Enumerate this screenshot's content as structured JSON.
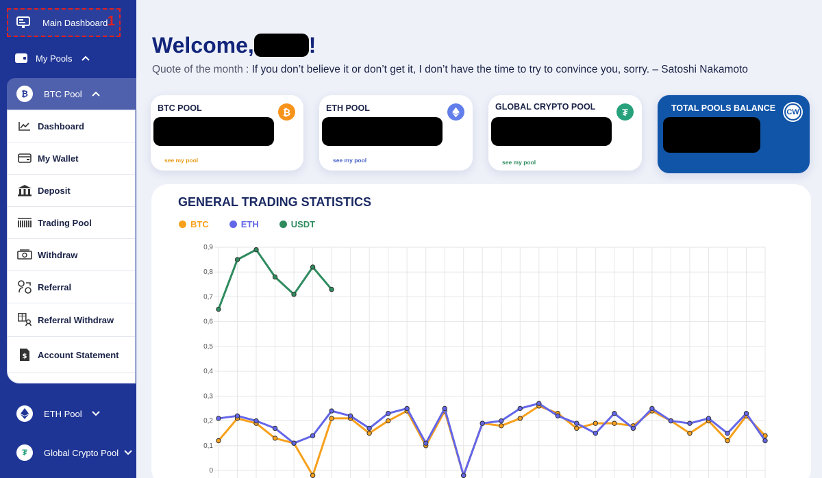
{
  "sidebar": {
    "main_dashboard": "Main Dashboard",
    "annotation_number": "1",
    "my_pools": "My Pools",
    "btc_pool": "BTC Pool",
    "btc_submenu": [
      {
        "label": "Dashboard",
        "icon": "chart-line-icon"
      },
      {
        "label": "My Wallet",
        "icon": "wallet-card-icon"
      },
      {
        "label": "Deposit",
        "icon": "bank-icon"
      },
      {
        "label": "Trading Pool",
        "icon": "barcode-icon"
      },
      {
        "label": "Withdraw",
        "icon": "money-icon"
      },
      {
        "label": "Referral",
        "icon": "referral-icon"
      },
      {
        "label": "Referral Withdraw",
        "icon": "referral-withdraw-icon"
      },
      {
        "label": "Account Statement",
        "icon": "statement-icon"
      }
    ],
    "eth_pool": "ETH Pool",
    "global_pool": "Global Crypto Pool"
  },
  "header": {
    "welcome_prefix": "Welcome,",
    "welcome_suffix": "!",
    "quote_label": "Quote of the month : ",
    "quote_text": "If you don’t believe it or don’t get it, I don’t have the time to try to convince you, sorry. – Satoshi Nakamoto"
  },
  "cards": {
    "btc": {
      "title": "BTC POOL",
      "link": "see my pool",
      "color": "#f7931a"
    },
    "eth": {
      "title": "ETH POOL",
      "link": "see my pool",
      "color": "#627eea"
    },
    "global": {
      "title": "GLOBAL CRYPTO POOL",
      "link": "see my pool",
      "color": "#26a17b"
    },
    "total": {
      "title": "TOTAL POOLS BALANCE",
      "logo_text": "CW"
    }
  },
  "colors": {
    "sidebar": "#1e3596",
    "btc": "#f7a01c",
    "eth": "#6366e8",
    "usdt": "#2e8b5e"
  },
  "chart_data": {
    "type": "line",
    "title": "GENERAL TRADING STATISTICS",
    "ylim": [
      0,
      0.9
    ],
    "y_ticks": [
      "0",
      "0,1",
      "0,2",
      "0,3",
      "0,4",
      "0,5",
      "0,6",
      "0,7",
      "0,8",
      "0,9"
    ],
    "series": [
      {
        "name": "BTC",
        "color": "#f7a01c",
        "values": [
          0.12,
          0.21,
          0.19,
          0.13,
          0.11,
          -0.02,
          0.21,
          0.21,
          0.15,
          0.2,
          0.24,
          0.1,
          0.24,
          -0.02,
          0.19,
          0.18,
          0.21,
          0.26,
          0.23,
          0.17,
          0.19,
          0.19,
          0.18,
          0.24,
          0.2,
          0.15,
          0.2,
          0.12,
          0.22,
          0.14
        ]
      },
      {
        "name": "ETH",
        "color": "#6366e8",
        "values": [
          0.21,
          0.22,
          0.2,
          0.17,
          0.11,
          0.14,
          0.24,
          0.22,
          0.17,
          0.23,
          0.25,
          0.11,
          0.25,
          -0.02,
          0.19,
          0.2,
          0.25,
          0.27,
          0.22,
          0.19,
          0.15,
          0.23,
          0.17,
          0.25,
          0.2,
          0.19,
          0.21,
          0.15,
          0.23,
          0.12
        ]
      },
      {
        "name": "USDT",
        "color": "#2e8b5e",
        "values": [
          0.65,
          0.85,
          0.89,
          0.78,
          0.71,
          0.82,
          0.73
        ]
      }
    ]
  }
}
